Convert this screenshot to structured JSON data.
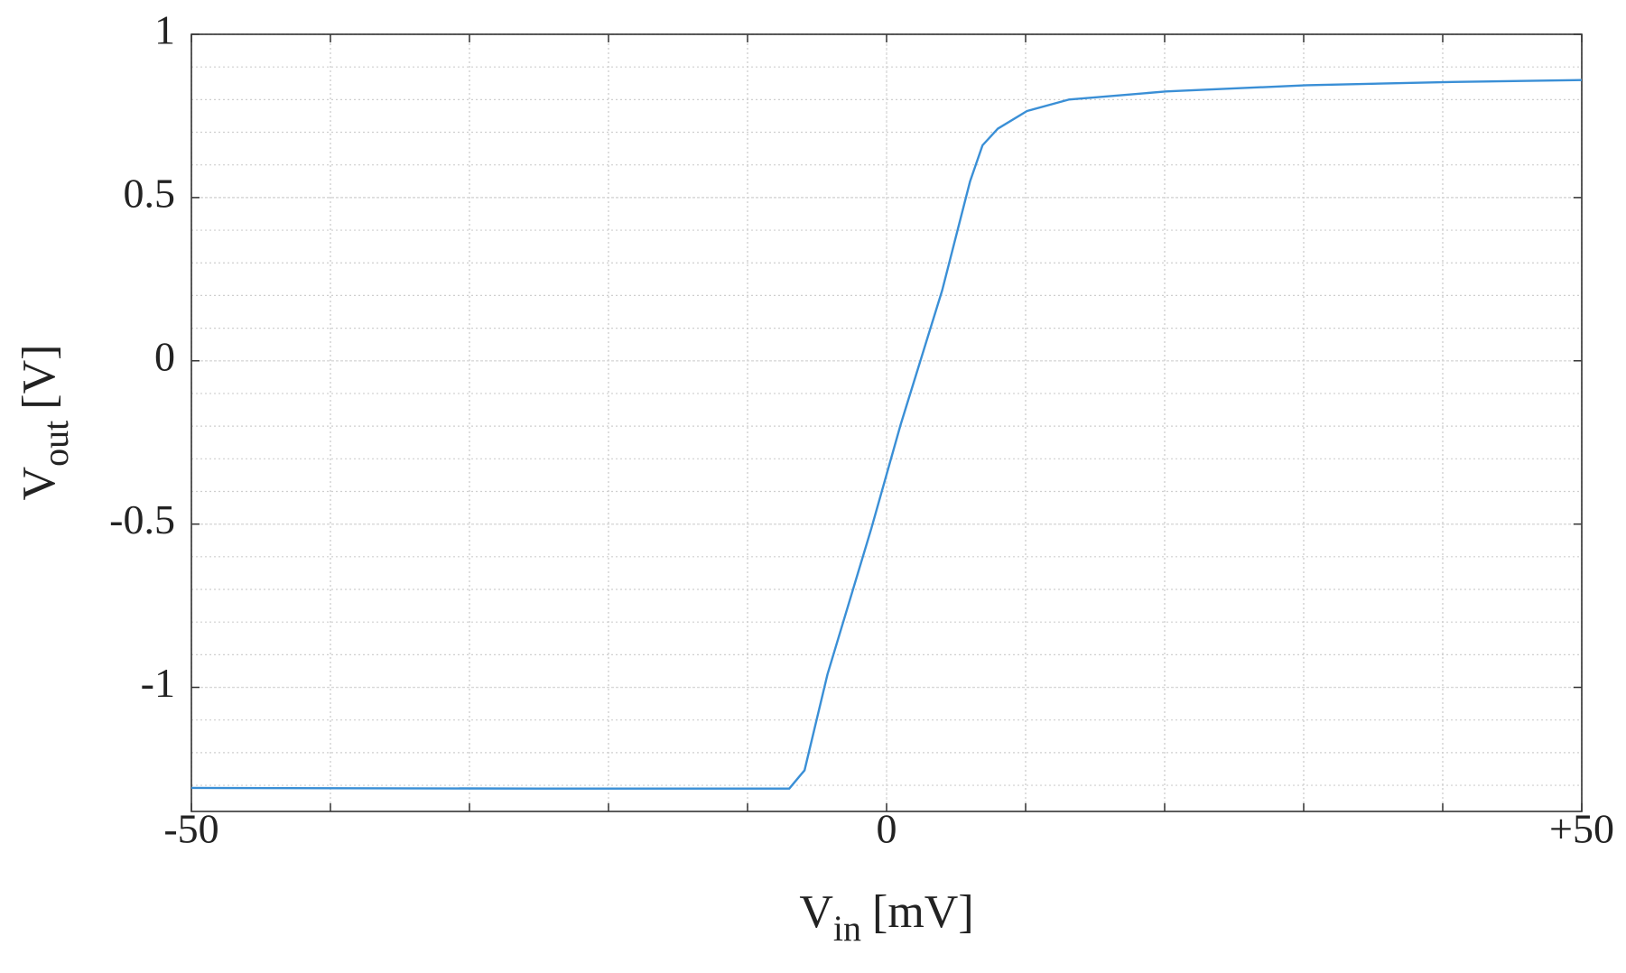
{
  "chart_data": {
    "type": "line",
    "xlabel": {
      "main": "V",
      "sub": "in",
      "unit": "[mV]"
    },
    "ylabel": {
      "main": "V",
      "sub": "out",
      "unit": "[V]"
    },
    "xlim": [
      -50,
      50
    ],
    "ylim": [
      -1.38,
      1
    ],
    "xticks": [
      -50,
      0,
      {
        "value": 50,
        "label": "+50"
      }
    ],
    "xminorticks": [
      -40,
      -30,
      -20,
      -10,
      10,
      20,
      30,
      40
    ],
    "yticks": [
      -1,
      -0.5,
      0,
      0.5,
      1
    ],
    "yminorticks": [
      -1.3,
      -1.2,
      -1.1,
      -0.9,
      -0.8,
      -0.7,
      -0.6,
      -0.4,
      -0.3,
      -0.2,
      -0.1,
      0.1,
      0.2,
      0.3,
      0.4,
      0.6,
      0.7,
      0.8,
      0.9
    ],
    "grid": true,
    "series": [
      {
        "color": "#3a8fd6",
        "x": [
          -50,
          -25,
          -7,
          -5.9,
          -4.25,
          -1.1,
          1.0,
          4.0,
          6.0,
          6.9,
          8.0,
          10.1,
          13.1,
          20.1,
          30.2,
          40.7,
          50
        ],
        "values": [
          -1.308,
          -1.31,
          -1.31,
          -1.254,
          -0.96,
          -0.514,
          -0.197,
          0.216,
          0.549,
          0.66,
          0.711,
          0.765,
          0.8,
          0.825,
          0.844,
          0.854,
          0.86
        ]
      }
    ]
  }
}
